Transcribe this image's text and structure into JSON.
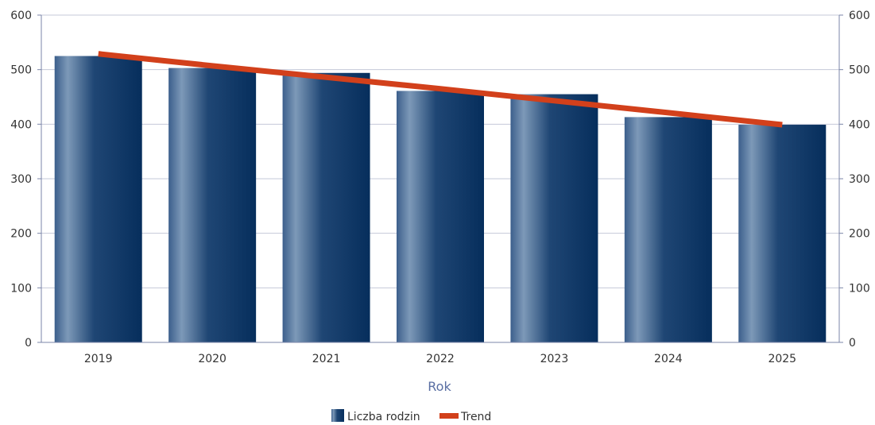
{
  "chart_data": {
    "type": "bar",
    "categories": [
      "2019",
      "2020",
      "2021",
      "2022",
      "2023",
      "2024",
      "2025"
    ],
    "series": [
      {
        "name": "Liczba rodzin",
        "type": "bar",
        "values": [
          525,
          503,
          494,
          461,
          455,
          413,
          399
        ],
        "color": "#0f3a6b"
      },
      {
        "name": "Trend",
        "type": "line",
        "values": [
          529,
          507,
          486,
          465,
          443,
          421,
          399
        ],
        "color": "#d2401b"
      }
    ],
    "xlabel": "Rok",
    "ylabel": "",
    "ylim": [
      0,
      600
    ],
    "yticks": [
      0,
      100,
      200,
      300,
      400,
      500,
      600
    ],
    "secondary_yaxis": true,
    "grid": true,
    "legend_position": "bottom-center"
  }
}
